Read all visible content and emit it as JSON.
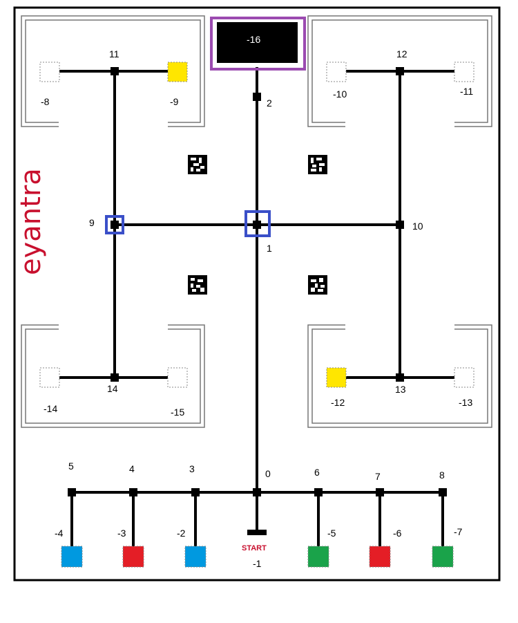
{
  "brand": {
    "text": "eyantra",
    "color": "#c8102e"
  },
  "start": {
    "label": "START",
    "color": "#c8102e"
  },
  "colors": {
    "track": "#000000",
    "border": "#000000",
    "zone_border": "#777777",
    "highlight_target": "#9b4bb0",
    "highlight_node": "#3a4fc8",
    "yellow": "#ffe600",
    "blue": "#0099e0",
    "red": "#e41e26",
    "green": "#1aa34a",
    "empty": "#ffffff"
  },
  "node_labels": {
    "n0": "0",
    "n1": "1",
    "n2": "2",
    "n3": "3",
    "n4": "4",
    "n5": "5",
    "n6": "6",
    "n7": "7",
    "n8": "8",
    "n9": "9",
    "n10": "10",
    "n11": "11",
    "n12": "12",
    "n13": "13",
    "n14": "14"
  },
  "cell_labels": {
    "c1": "-1",
    "c2": "-2",
    "c3": "-3",
    "c4": "-4",
    "c5": "-5",
    "c6": "-6",
    "c7": "-7",
    "c8": "-8",
    "c9": "-9",
    "c10": "-10",
    "c11": "-11",
    "c12": "-12",
    "c13": "-13",
    "c14": "-14",
    "c15": "-15",
    "c16": "-16"
  },
  "cells": {
    "c2": "blue",
    "c3": "red",
    "c4": "blue",
    "c5": "green",
    "c6": "red",
    "c7": "green",
    "c8": "empty",
    "c9": "yellow",
    "c10": "empty",
    "c11": "empty",
    "c12": "yellow",
    "c13": "empty",
    "c14": "empty",
    "c15": "empty",
    "c16": "black"
  },
  "highlighted": {
    "target_cell": "-16",
    "nodes": [
      "1",
      "9"
    ]
  }
}
